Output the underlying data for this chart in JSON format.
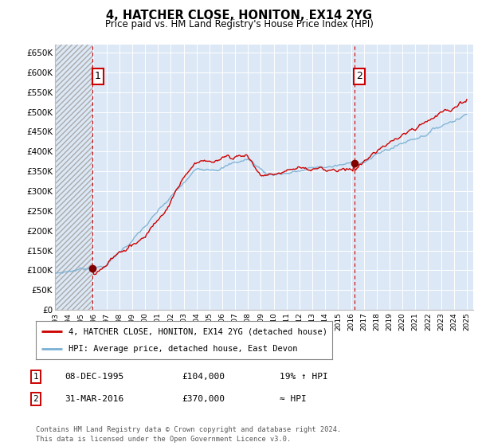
{
  "title": "4, HATCHER CLOSE, HONITON, EX14 2YG",
  "subtitle": "Price paid vs. HM Land Registry's House Price Index (HPI)",
  "ylabel_ticks": [
    "£0",
    "£50K",
    "£100K",
    "£150K",
    "£200K",
    "£250K",
    "£300K",
    "£350K",
    "£400K",
    "£450K",
    "£500K",
    "£550K",
    "£600K",
    "£650K"
  ],
  "ytick_vals": [
    0,
    50000,
    100000,
    150000,
    200000,
    250000,
    300000,
    350000,
    400000,
    450000,
    500000,
    550000,
    600000,
    650000
  ],
  "ylim": [
    0,
    670000
  ],
  "xlim_start": 1993.0,
  "xlim_end": 2025.5,
  "purchase1_x": 1995.92,
  "purchase1_y": 104000,
  "purchase2_x": 2016.25,
  "purchase2_y": 370000,
  "vline1_x": 1995.92,
  "vline2_x": 2016.25,
  "line1_label": "4, HATCHER CLOSE, HONITON, EX14 2YG (detached house)",
  "line2_label": "HPI: Average price, detached house, East Devon",
  "line1_color": "#cc0000",
  "line2_color": "#7ab0d4",
  "marker_color": "#800000",
  "vline_color": "#cc0000",
  "table_row1": [
    "1",
    "08-DEC-1995",
    "£104,000",
    "19% ↑ HPI"
  ],
  "table_row2": [
    "2",
    "31-MAR-2016",
    "£370,000",
    "≈ HPI"
  ],
  "footnote": "Contains HM Land Registry data © Crown copyright and database right 2024.\nThis data is licensed under the Open Government Licence v3.0.",
  "background_color": "#ffffff",
  "plot_bg_color": "#dce8f5",
  "grid_color": "#ffffff",
  "xticks": [
    1993,
    1994,
    1995,
    1996,
    1997,
    1998,
    1999,
    2000,
    2001,
    2002,
    2003,
    2004,
    2005,
    2006,
    2007,
    2008,
    2009,
    2010,
    2011,
    2012,
    2013,
    2014,
    2015,
    2016,
    2017,
    2018,
    2019,
    2020,
    2021,
    2022,
    2023,
    2024,
    2025
  ],
  "hpi_start_year": 1993.0,
  "hpi_end_year": 2025.0,
  "prop_start_year": 1995.92,
  "prop_end_year": 2025.0
}
